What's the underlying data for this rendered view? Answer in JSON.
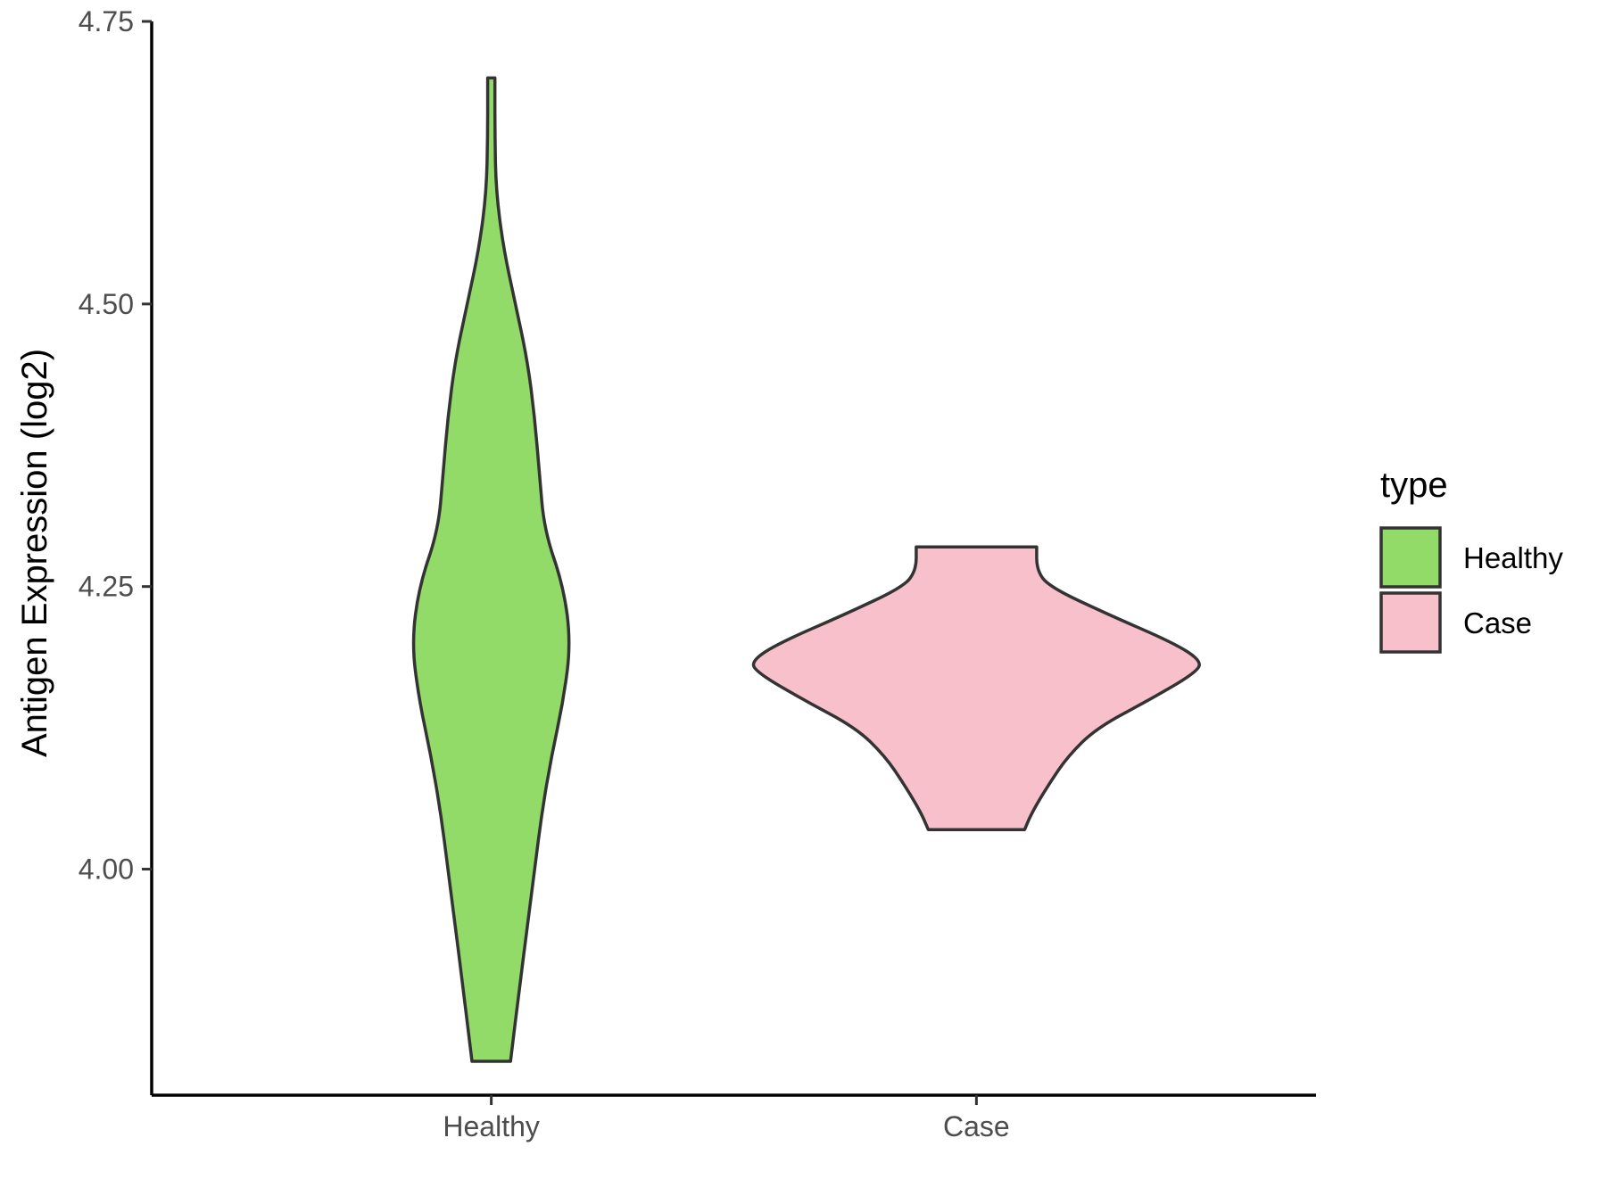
{
  "chart_data": {
    "type": "violin",
    "ylabel": "Antigen Expression (log2)",
    "xlabel": "",
    "ylim": [
      3.8,
      4.75
    ],
    "yticks": [
      4.0,
      4.25,
      4.5,
      4.75
    ],
    "ytick_labels": [
      "4.00",
      "4.25",
      "4.50",
      "4.75"
    ],
    "categories": [
      "Healthy",
      "Case"
    ],
    "grid": false,
    "legend": {
      "title": "type",
      "position": "right",
      "entries": [
        {
          "label": "Healthy",
          "color": "#93DB69"
        },
        {
          "label": "Case",
          "color": "#F7C0CB"
        }
      ]
    },
    "series": [
      {
        "name": "Healthy",
        "color": "#93DB69",
        "min": 3.83,
        "max": 4.7,
        "profile": [
          [
            3.83,
            0.08
          ],
          [
            3.9,
            0.12
          ],
          [
            3.95,
            0.15
          ],
          [
            4.0,
            0.18
          ],
          [
            4.05,
            0.21
          ],
          [
            4.1,
            0.25
          ],
          [
            4.15,
            0.3
          ],
          [
            4.2,
            0.33
          ],
          [
            4.25,
            0.3
          ],
          [
            4.3,
            0.22
          ],
          [
            4.35,
            0.2
          ],
          [
            4.4,
            0.18
          ],
          [
            4.45,
            0.15
          ],
          [
            4.5,
            0.1
          ],
          [
            4.55,
            0.05
          ],
          [
            4.6,
            0.02
          ],
          [
            4.65,
            0.015
          ],
          [
            4.7,
            0.015
          ]
        ]
      },
      {
        "name": "Case",
        "color": "#F7C0CB",
        "min": 4.035,
        "max": 4.285,
        "profile": [
          [
            4.035,
            0.2
          ],
          [
            4.05,
            0.23
          ],
          [
            4.075,
            0.3
          ],
          [
            4.1,
            0.38
          ],
          [
            4.125,
            0.5
          ],
          [
            4.15,
            0.72
          ],
          [
            4.175,
            0.92
          ],
          [
            4.185,
            0.93
          ],
          [
            4.2,
            0.82
          ],
          [
            4.225,
            0.55
          ],
          [
            4.25,
            0.3
          ],
          [
            4.265,
            0.25
          ],
          [
            4.285,
            0.25
          ]
        ]
      }
    ]
  }
}
